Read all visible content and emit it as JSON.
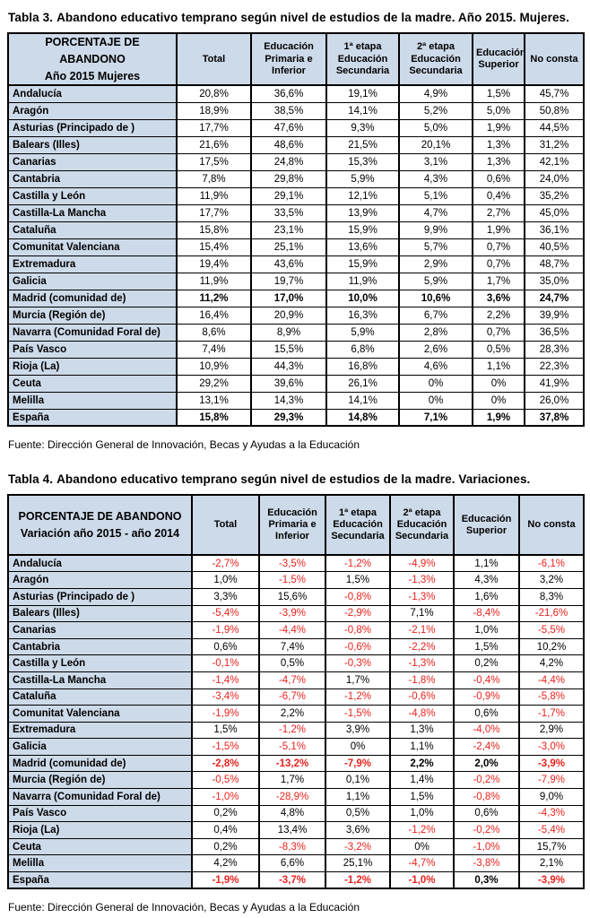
{
  "colors": {
    "header_bg": "#CDDAE9",
    "negative": "#E8231E",
    "border": "#000000",
    "text": "#000000",
    "page_bg": "#FFFFFF"
  },
  "tables": [
    {
      "title_num": "Tabla 3.",
      "title_text": "Abandono educativo temprano según nivel de estudios de la madre. Año 2015. Mujeres.",
      "header": {
        "line1": "PORCENTAJE DE ABANDONO",
        "line2": "Año 2015 Mujeres"
      },
      "columns": [
        "Total",
        "Educación Primaria e Inferior",
        "1ª etapa Educación Secundaria",
        "2ª etapa Educación Secundaria",
        "Educación Superior",
        "No consta"
      ],
      "rows": [
        {
          "region": "Andalucía",
          "bold": false,
          "values": [
            "20,8%",
            "36,6%",
            "19,1%",
            "4,9%",
            "1,5%",
            "45,7%"
          ]
        },
        {
          "region": "Aragón",
          "bold": false,
          "values": [
            "18,9%",
            "38,5%",
            "14,1%",
            "5,2%",
            "5,0%",
            "50,8%"
          ]
        },
        {
          "region": "Asturias (Principado de )",
          "bold": false,
          "values": [
            "17,7%",
            "47,6%",
            "9,3%",
            "5,0%",
            "1,9%",
            "44,5%"
          ]
        },
        {
          "region": "Balears (Illes)",
          "bold": false,
          "values": [
            "21,6%",
            "48,6%",
            "21,5%",
            "20,1%",
            "1,3%",
            "31,2%"
          ]
        },
        {
          "region": "Canarias",
          "bold": false,
          "values": [
            "17,5%",
            "24,8%",
            "15,3%",
            "3,1%",
            "1,3%",
            "42,1%"
          ]
        },
        {
          "region": "Cantabria",
          "bold": false,
          "values": [
            "7,8%",
            "29,8%",
            "5,9%",
            "4,3%",
            "0,6%",
            "24,0%"
          ]
        },
        {
          "region": "Castilla y León",
          "bold": false,
          "values": [
            "11,9%",
            "29,1%",
            "12,1%",
            "5,1%",
            "0,4%",
            "35,2%"
          ]
        },
        {
          "region": "Castilla-La Mancha",
          "bold": false,
          "values": [
            "17,7%",
            "33,5%",
            "13,9%",
            "4,7%",
            "2,7%",
            "45,0%"
          ]
        },
        {
          "region": "Cataluña",
          "bold": false,
          "values": [
            "15,8%",
            "23,1%",
            "15,9%",
            "9,9%",
            "1,9%",
            "36,1%"
          ]
        },
        {
          "region": "Comunitat Valenciana",
          "bold": false,
          "values": [
            "15,4%",
            "25,1%",
            "13,6%",
            "5,7%",
            "0,7%",
            "40,5%"
          ]
        },
        {
          "region": "Extremadura",
          "bold": false,
          "values": [
            "19,4%",
            "43,6%",
            "15,9%",
            "2,9%",
            "0,7%",
            "48,7%"
          ]
        },
        {
          "region": "Galicia",
          "bold": false,
          "values": [
            "11,9%",
            "19,7%",
            "11,9%",
            "5,9%",
            "1,7%",
            "35,0%"
          ]
        },
        {
          "region": "Madrid (comunidad de)",
          "bold": true,
          "values": [
            "11,2%",
            "17,0%",
            "10,0%",
            "10,6%",
            "3,6%",
            "24,7%"
          ]
        },
        {
          "region": "Murcia (Región de)",
          "bold": false,
          "values": [
            "16,4%",
            "20,9%",
            "16,3%",
            "6,7%",
            "2,2%",
            "39,9%"
          ]
        },
        {
          "region": "Navarra (Comunidad Foral de)",
          "bold": false,
          "values": [
            "8,6%",
            "8,9%",
            "5,9%",
            "2,8%",
            "0,7%",
            "36,5%"
          ]
        },
        {
          "region": "País Vasco",
          "bold": false,
          "values": [
            "7,4%",
            "15,5%",
            "6,8%",
            "2,6%",
            "0,5%",
            "28,3%"
          ]
        },
        {
          "region": "Rioja (La)",
          "bold": false,
          "values": [
            "10,9%",
            "44,3%",
            "16,8%",
            "4,6%",
            "1,1%",
            "22,3%"
          ]
        },
        {
          "region": "Ceuta",
          "bold": false,
          "values": [
            "29,2%",
            "39,6%",
            "26,1%",
            "0%",
            "0%",
            "41,9%"
          ]
        },
        {
          "region": "Melilla",
          "bold": false,
          "values": [
            "13,1%",
            "14,3%",
            "14,1%",
            "0%",
            "0%",
            "26,0%"
          ]
        },
        {
          "region": "España",
          "bold": true,
          "values": [
            "15,8%",
            "29,3%",
            "14,8%",
            "7,1%",
            "1,9%",
            "37,8%"
          ]
        }
      ],
      "source": "Fuente: Dirección General de Innovación, Becas y Ayudas a la Educación"
    },
    {
      "title_num": "Tabla 4.",
      "title_text": "Abandono educativo temprano según nivel de estudios de la madre. Variaciones.",
      "header": {
        "line1": "PORCENTAJE DE ABANDONO",
        "line2": "Variación año 2015 - año 2014"
      },
      "columns": [
        "Total",
        "Educación Primaria e Inferior",
        "1ª etapa Educación Secundaria",
        "2ª etapa Educación Secundaria",
        "Educación Superior",
        "No consta"
      ],
      "rows": [
        {
          "region": "Andalucía",
          "bold": false,
          "values": [
            "-2,7%",
            "-3,5%",
            "-1,2%",
            "-4,9%",
            "1,1%",
            "-6,1%"
          ]
        },
        {
          "region": "Aragón",
          "bold": false,
          "values": [
            "1,0%",
            "-1,5%",
            "1,5%",
            "-1,3%",
            "4,3%",
            "3,2%"
          ]
        },
        {
          "region": "Asturias (Principado de )",
          "bold": false,
          "values": [
            "3,3%",
            "15,6%",
            "-0,8%",
            "-1,3%",
            "1,6%",
            "8,3%"
          ]
        },
        {
          "region": "Balears (Illes)",
          "bold": false,
          "values": [
            "-5,4%",
            "-3,9%",
            "-2,9%",
            "7,1%",
            "-8,4%",
            "-21,6%"
          ]
        },
        {
          "region": "Canarias",
          "bold": false,
          "values": [
            "-1,9%",
            "-4,4%",
            "-0,8%",
            "-2,1%",
            "1,0%",
            "-5,5%"
          ]
        },
        {
          "region": "Cantabria",
          "bold": false,
          "values": [
            "0,6%",
            "7,4%",
            "-0,6%",
            "-2,2%",
            "1,5%",
            "10,2%"
          ]
        },
        {
          "region": "Castilla y León",
          "bold": false,
          "values": [
            "-0,1%",
            "0,5%",
            "-0,3%",
            "-1,3%",
            "0,2%",
            "4,2%"
          ]
        },
        {
          "region": "Castilla-La Mancha",
          "bold": false,
          "values": [
            "-1,4%",
            "-4,7%",
            "1,7%",
            "-1,8%",
            "-0,4%",
            "-4,4%"
          ]
        },
        {
          "region": "Cataluña",
          "bold": false,
          "values": [
            "-3,4%",
            "-6,7%",
            "-1,2%",
            "-0,6%",
            "-0,9%",
            "-5,8%"
          ]
        },
        {
          "region": "Comunitat Valenciana",
          "bold": false,
          "values": [
            "-1,9%",
            "2,2%",
            "-1,5%",
            "-4,8%",
            "0,6%",
            "-1,7%"
          ]
        },
        {
          "region": "Extremadura",
          "bold": false,
          "values": [
            "1,5%",
            "-1,2%",
            "3,9%",
            "1,3%",
            "-4,0%",
            "2,9%"
          ]
        },
        {
          "region": "Galicia",
          "bold": false,
          "values": [
            "-1,5%",
            "-5,1%",
            "0%",
            "1,1%",
            "-2,4%",
            "-3,0%"
          ]
        },
        {
          "region": "Madrid (comunidad de)",
          "bold": true,
          "values": [
            "-2,8%",
            "-13,2%",
            "-7,9%",
            "2,2%",
            "2,0%",
            "-3,9%"
          ]
        },
        {
          "region": "Murcia (Región de)",
          "bold": false,
          "values": [
            "-0,5%",
            "1,7%",
            "0,1%",
            "1,4%",
            "-0,2%",
            "-7,9%"
          ]
        },
        {
          "region": "Navarra (Comunidad Foral de)",
          "bold": false,
          "values": [
            "-1,0%",
            "-28,9%",
            "1,1%",
            "1,5%",
            "-0,8%",
            "9,0%"
          ]
        },
        {
          "region": "País Vasco",
          "bold": false,
          "values": [
            "0,2%",
            "4,8%",
            "0,5%",
            "1,0%",
            "0,6%",
            "-4,3%"
          ]
        },
        {
          "region": "Rioja (La)",
          "bold": false,
          "values": [
            "0,4%",
            "13,4%",
            "3,6%",
            "-1,2%",
            "-0,2%",
            "-5,4%"
          ]
        },
        {
          "region": "Ceuta",
          "bold": false,
          "values": [
            "0,2%",
            "-8,3%",
            "-3,2%",
            "0%",
            "-1,0%",
            "15,7%"
          ]
        },
        {
          "region": "Melilla",
          "bold": false,
          "values": [
            "4,2%",
            "6,6%",
            "25,1%",
            "-4,7%",
            "-3,8%",
            "2,1%"
          ]
        },
        {
          "region": "España",
          "bold": true,
          "values": [
            "-1,9%",
            "-3,7%",
            "-1,2%",
            "-1,0%",
            "0,3%",
            "-3,9%"
          ]
        }
      ],
      "source": "Fuente: Dirección General de Innovación, Becas y Ayudas a la Educación"
    }
  ]
}
